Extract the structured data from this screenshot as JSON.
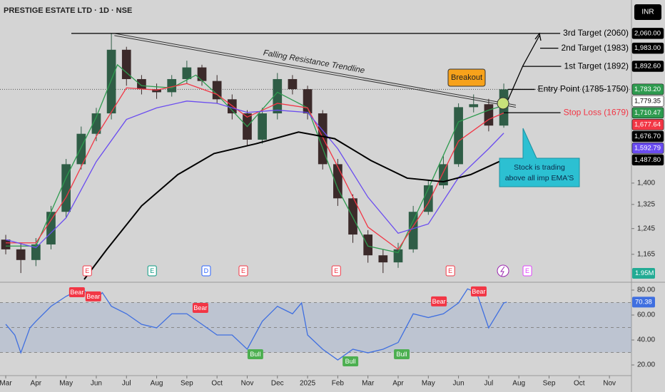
{
  "chart_data": [
    {
      "type": "candlestick",
      "title": "PRESTIGE ESTATE LTD · 1D · NSE",
      "unit": "INR",
      "x": [
        0,
        0.5,
        1,
        1.5,
        2,
        2.5,
        3,
        3.5,
        4,
        4.5,
        5,
        5.5,
        6,
        6.5,
        7,
        7.5,
        8,
        8.5,
        9,
        9.5,
        10,
        10.5,
        11,
        11.5,
        12,
        12.5,
        13,
        13.5,
        14,
        14.5,
        15,
        15.5,
        16,
        16.5
      ],
      "open": [
        1210,
        1180,
        1148,
        1195,
        1300,
        1470,
        1590,
        1676,
        1975,
        1831,
        1784,
        1770,
        1831,
        1887,
        1822,
        1738,
        1676,
        1566,
        1676,
        1831,
        1784,
        1676,
        1470,
        1346,
        1226,
        1162,
        1141,
        1180,
        1300,
        1392,
        1470,
        1703,
        1716,
        1624
      ],
      "high": [
        1225,
        1200,
        1215,
        1320,
        1490,
        1620,
        1700,
        2060,
        1990,
        1850,
        1810,
        1850,
        1920,
        1900,
        1850,
        1760,
        1690,
        1700,
        1860,
        1850,
        1800,
        1690,
        1490,
        1360,
        1240,
        1180,
        1200,
        1320,
        1410,
        1500,
        1720,
        1760,
        1740,
        1810
      ],
      "low": [
        1165,
        1110,
        1130,
        1180,
        1280,
        1450,
        1560,
        1650,
        1800,
        1760,
        1740,
        1750,
        1810,
        1800,
        1720,
        1650,
        1540,
        1550,
        1650,
        1760,
        1650,
        1450,
        1320,
        1200,
        1140,
        1110,
        1125,
        1170,
        1290,
        1380,
        1460,
        1680,
        1600,
        1615
      ],
      "close": [
        1180,
        1148,
        1195,
        1300,
        1470,
        1590,
        1676,
        1975,
        1831,
        1784,
        1770,
        1831,
        1887,
        1822,
        1738,
        1676,
        1566,
        1676,
        1831,
        1784,
        1676,
        1470,
        1346,
        1226,
        1162,
        1141,
        1180,
        1300,
        1392,
        1470,
        1703,
        1716,
        1624,
        1783.2
      ],
      "up_color": "#2f5d46",
      "down_color": "#3b2a2a",
      "overlays": [
        {
          "color": "#2e9b4f",
          "x": [
            0,
            1,
            2,
            3,
            3.7,
            4.5,
            5.5,
            6.3,
            7,
            8,
            9,
            10,
            11,
            12,
            13,
            14,
            15,
            16,
            16.5
          ],
          "values": [
            1190,
            1190,
            1420,
            1660,
            1900,
            1800,
            1790,
            1850,
            1760,
            1620,
            1770,
            1700,
            1380,
            1190,
            1170,
            1380,
            1640,
            1690,
            1710.47
          ]
        },
        {
          "color": "#f23645",
          "x": [
            0,
            1,
            2,
            3,
            4,
            5,
            6,
            7,
            8,
            9,
            10,
            11,
            12,
            13,
            14,
            15,
            16,
            16.5
          ],
          "values": [
            1200,
            1200,
            1350,
            1580,
            1790,
            1780,
            1810,
            1760,
            1660,
            1720,
            1700,
            1460,
            1250,
            1180,
            1330,
            1560,
            1650,
            1677.64
          ]
        },
        {
          "color": "#6a4cf0",
          "x": [
            0,
            1,
            2,
            3,
            4,
            5,
            6,
            7,
            8,
            9,
            10,
            11,
            12,
            13,
            14,
            15,
            16,
            16.5
          ],
          "values": [
            1210,
            1185,
            1280,
            1480,
            1650,
            1700,
            1730,
            1720,
            1680,
            1690,
            1680,
            1530,
            1350,
            1230,
            1260,
            1420,
            1530,
            1592.79
          ]
        },
        {
          "color": "#000000",
          "x": [
            2.6,
            3.35,
            4.5,
            5.7,
            6.9,
            8.3,
            9.7,
            10.9,
            12.1,
            13.3,
            14.5,
            15.4,
            16.5
          ],
          "values": [
            1092,
            1180,
            1320,
            1431,
            1511,
            1550,
            1597,
            1570,
            1484,
            1418,
            1405,
            1431,
            1487.8
          ]
        }
      ],
      "xlim": [
        -0.19,
        20.73
      ],
      "xticks": [
        {
          "value": 0,
          "label": "Mar"
        },
        {
          "value": 1,
          "label": "Apr"
        },
        {
          "value": 2,
          "label": "May"
        },
        {
          "value": 3,
          "label": "Jun"
        },
        {
          "value": 4,
          "label": "Jul"
        },
        {
          "value": 5,
          "label": "Aug"
        },
        {
          "value": 6,
          "label": "Sep"
        },
        {
          "value": 7,
          "label": "Oct"
        },
        {
          "value": 8,
          "label": "Nov"
        },
        {
          "value": 9,
          "label": "Dec"
        },
        {
          "value": 10,
          "label": "2025"
        },
        {
          "value": 11,
          "label": "Feb"
        },
        {
          "value": 12,
          "label": "Mar"
        },
        {
          "value": 13,
          "label": "Apr"
        },
        {
          "value": 14,
          "label": "May"
        },
        {
          "value": 15,
          "label": "Jun"
        },
        {
          "value": 16,
          "label": "Jul"
        },
        {
          "value": 17,
          "label": "Aug"
        },
        {
          "value": 18,
          "label": "Sep"
        },
        {
          "value": 19,
          "label": "Oct"
        },
        {
          "value": 20,
          "label": "Nov"
        }
      ],
      "ylim": [
        1092,
        2225
      ],
      "log_scale": true,
      "yticks": [
        {
          "value": 1165,
          "label": "1,165"
        },
        {
          "value": 1245,
          "label": "1,245"
        },
        {
          "value": 1325,
          "label": "1,325"
        },
        {
          "value": 1400,
          "label": "1,400"
        }
      ],
      "price_labels": [
        {
          "value": 2060,
          "label": "2,060.00",
          "bg": "#000000",
          "fg": "#ffffff"
        },
        {
          "value": 1983,
          "label": "1,983.00",
          "bg": "#000000",
          "fg": "#ffffff"
        },
        {
          "value": 1892.6,
          "label": "1,892.60",
          "bg": "#000000",
          "fg": "#ffffff"
        },
        {
          "value": 1783.2,
          "label": "1,783.20",
          "bg": "#2e9b4f",
          "fg": "#ffffff"
        },
        {
          "value": 1779.35,
          "label": "1,779.35",
          "bg": "#ffffff",
          "fg": "#000000"
        },
        {
          "value": 1710.47,
          "label": "1,710.47",
          "bg": "#2e9b4f",
          "fg": "#ffffff"
        },
        {
          "value": 1677.64,
          "label": "1,677.64",
          "bg": "#f23645",
          "fg": "#ffffff"
        },
        {
          "value": 1676.7,
          "label": "1,676.70",
          "bg": "#000000",
          "fg": "#ffffff"
        },
        {
          "value": 1592.79,
          "label": "1,592.79",
          "bg": "#6a4cf0",
          "fg": "#ffffff"
        },
        {
          "value": 1487.8,
          "label": "1,487.80",
          "bg": "#000000",
          "fg": "#ffffff"
        }
      ],
      "current_price": 1783.2,
      "volume_label": "1.95M",
      "events": [
        {
          "x": 2.7,
          "label": "E",
          "color": "#f23645"
        },
        {
          "x": 4.85,
          "label": "E",
          "color": "#089981"
        },
        {
          "x": 6.64,
          "label": "D",
          "color": "#2962ff"
        },
        {
          "x": 7.87,
          "label": "E",
          "color": "#f23645"
        },
        {
          "x": 10.95,
          "label": "E",
          "color": "#f23645"
        },
        {
          "x": 14.73,
          "label": "E",
          "color": "#f23645"
        },
        {
          "x": 17.28,
          "label": "E",
          "color": "#e040fb"
        }
      ],
      "annotations": [
        {
          "text": "3rd Target (2060)",
          "value": 2060,
          "color": "#000000"
        },
        {
          "text": "2nd Target (1983)",
          "value": 1983,
          "color": "#000000"
        },
        {
          "text": "1st Target (1892)",
          "value": 1892,
          "color": "#000000"
        },
        {
          "text": "Entry Point (1785-1750)",
          "value": 1783,
          "color": "#000000"
        },
        {
          "text": "Stop Loss (1679)",
          "value": 1679,
          "color": "#f23645"
        }
      ],
      "trendline": {
        "label": "Falling Resistance Trendline",
        "x": [
          3.6,
          16.9
        ],
        "values": [
          2060,
          1712
        ]
      },
      "breakout": "Breakout",
      "callout": [
        "Stock is trading",
        "above all imp EMA'S"
      ]
    },
    {
      "type": "line",
      "color": "#3f6fe0",
      "x": [
        0,
        0.3,
        0.5,
        0.8,
        1,
        1.5,
        2,
        2.5,
        3,
        3.2,
        3.5,
        4,
        4.5,
        5,
        5.5,
        6,
        6.5,
        7,
        7.5,
        8,
        8.5,
        9,
        9.5,
        9.8,
        10,
        10.5,
        11,
        11.5,
        12,
        12.5,
        13,
        13.5,
        14,
        14.5,
        15,
        15.3,
        15.6,
        16,
        16.5,
        16.6
      ],
      "values": [
        52.6,
        44,
        29.7,
        49.7,
        55,
        67,
        75,
        81,
        72.6,
        78,
        67,
        61,
        52.6,
        49.7,
        61,
        61,
        52.6,
        44,
        44,
        32.6,
        55,
        67,
        61,
        69.7,
        44,
        32.6,
        24,
        32.6,
        29.7,
        32.6,
        38,
        61,
        58,
        61,
        69.7,
        81,
        78,
        49.7,
        69.7,
        70.38
      ],
      "xlim": [
        -0.19,
        20.73
      ],
      "ylim": [
        12.6,
        84
      ],
      "yticks": [
        {
          "value": 80,
          "label": "80.00"
        },
        {
          "value": 60,
          "label": "60.00"
        },
        {
          "value": 40,
          "label": "40.00"
        },
        {
          "value": 20,
          "label": "20.00"
        }
      ],
      "band": [
        30,
        70
      ],
      "levels": [
        70,
        50,
        30
      ],
      "last_label": {
        "value": 70.38,
        "label": "70.38"
      },
      "signals": [
        {
          "x": 2.36,
          "y": 78.3,
          "label": "Bear",
          "color": "#f23645"
        },
        {
          "x": 2.9,
          "y": 74.9,
          "label": "Bear",
          "color": "#f23645"
        },
        {
          "x": 6.45,
          "y": 65.7,
          "label": "Bear",
          "color": "#f23645"
        },
        {
          "x": 14.35,
          "y": 70.9,
          "label": "Bear",
          "color": "#f23645"
        },
        {
          "x": 15.67,
          "y": 78.9,
          "label": "Bear",
          "color": "#f23645"
        },
        {
          "x": 8.27,
          "y": 28.6,
          "label": "Bull",
          "color": "#4caf50"
        },
        {
          "x": 11.42,
          "y": 22.9,
          "label": "Bull",
          "color": "#4caf50"
        },
        {
          "x": 13.12,
          "y": 28.6,
          "label": "Bull",
          "color": "#4caf50"
        }
      ]
    }
  ]
}
